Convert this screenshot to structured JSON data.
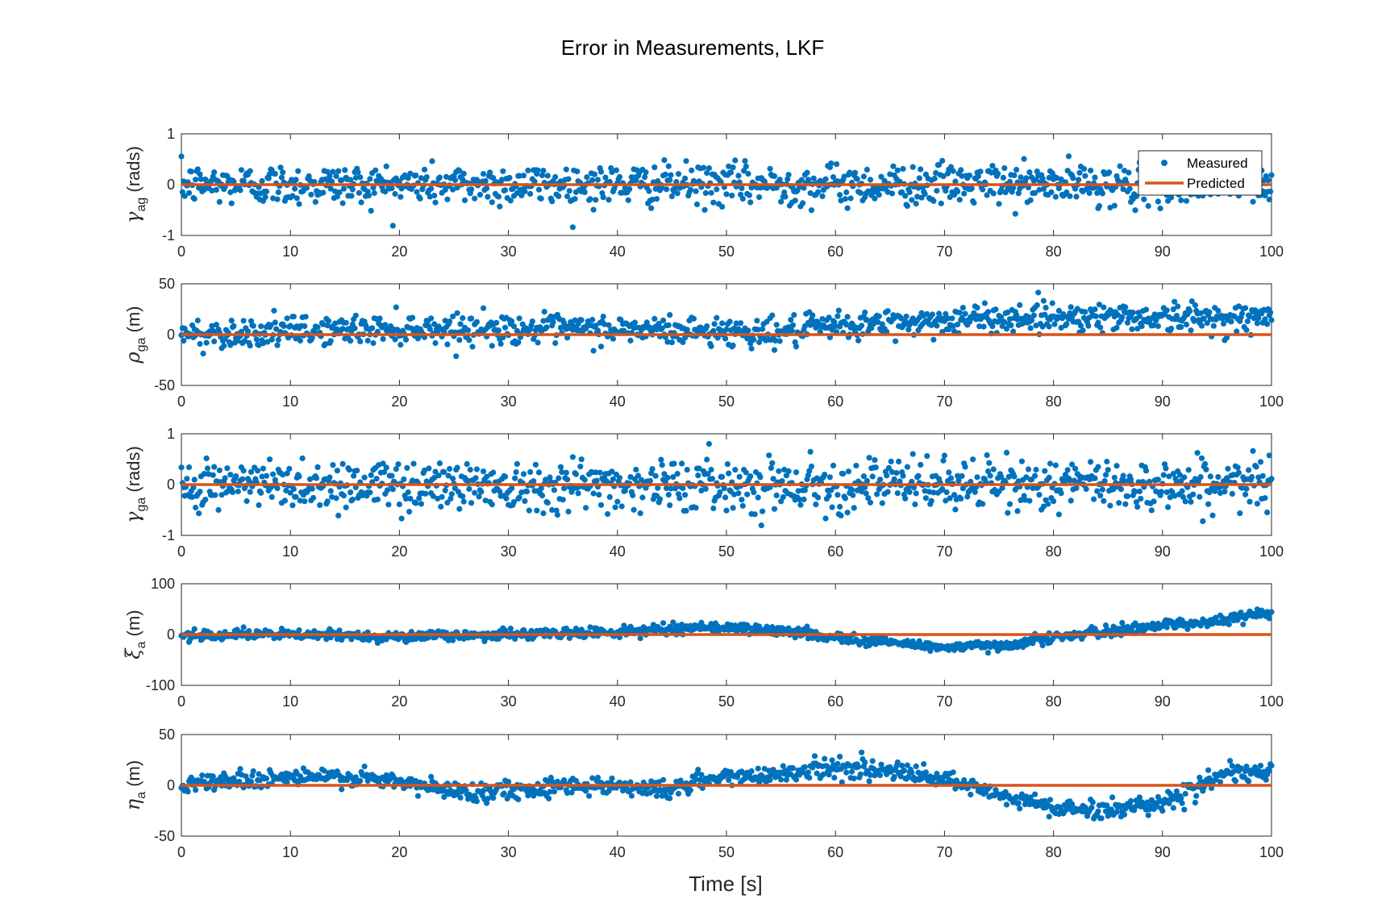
{
  "chart_data": {
    "title": "Error in Measurements, LKF",
    "xlabel": "Time [s]",
    "colors": {
      "measured": "#0072BD",
      "predicted": "#D95319",
      "axis": "#262626"
    },
    "legend": {
      "placement": "top-right",
      "entries": [
        "Measured",
        "Predicted"
      ]
    },
    "grid": false,
    "panels": [
      {
        "type": "scatter",
        "ylabel": {
          "symbol": "γ",
          "sub": "ag",
          "unit": "(rads)"
        },
        "xlim": [
          0,
          100
        ],
        "ylim": [
          -1,
          1
        ],
        "xticks": [
          "0",
          "10",
          "20",
          "30",
          "40",
          "50",
          "60",
          "70",
          "80",
          "90",
          "100"
        ],
        "yticks": [
          "-1",
          "0",
          "1"
        ],
        "x": [
          0,
          100
        ],
        "series": [
          {
            "name": "Measured",
            "noise_sd": 0.2,
            "trend": [
              [
                0,
                0
              ],
              [
                100,
                0
              ]
            ]
          },
          {
            "name": "Predicted",
            "values": [
              0,
              0
            ]
          }
        ]
      },
      {
        "type": "scatter",
        "ylabel": {
          "symbol": "ρ",
          "sub": "ga",
          "unit": "(m)"
        },
        "xlim": [
          0,
          100
        ],
        "ylim": [
          -50,
          50
        ],
        "xticks": [
          "0",
          "10",
          "20",
          "30",
          "40",
          "50",
          "60",
          "70",
          "80",
          "90",
          "100"
        ],
        "yticks": [
          "-50",
          "0",
          "50"
        ],
        "x": [
          0,
          100
        ],
        "series": [
          {
            "name": "Measured",
            "noise_sd": 7,
            "trend": [
              [
                0,
                0
              ],
              [
                20,
                6
              ],
              [
                40,
                5
              ],
              [
                55,
                2
              ],
              [
                60,
                8
              ],
              [
                70,
                14
              ],
              [
                80,
                18
              ],
              [
                90,
                17
              ],
              [
                100,
                16
              ]
            ]
          },
          {
            "name": "Predicted",
            "values": [
              0,
              0
            ]
          }
        ]
      },
      {
        "type": "scatter",
        "ylabel": {
          "symbol": "γ",
          "sub": "ga",
          "unit": "(rads)"
        },
        "xlim": [
          0,
          100
        ],
        "ylim": [
          -1,
          1
        ],
        "xticks": [
          "0",
          "10",
          "20",
          "30",
          "40",
          "50",
          "60",
          "70",
          "80",
          "90",
          "100"
        ],
        "yticks": [
          "-1",
          "0",
          "1"
        ],
        "x": [
          0,
          100
        ],
        "series": [
          {
            "name": "Measured",
            "noise_sd": 0.25,
            "trend": [
              [
                0,
                0
              ],
              [
                100,
                0
              ]
            ]
          },
          {
            "name": "Predicted",
            "values": [
              0,
              0
            ]
          }
        ]
      },
      {
        "type": "scatter",
        "ylabel": {
          "symbol": "ξ",
          "sub": "a",
          "unit": "(m)"
        },
        "xlim": [
          0,
          100
        ],
        "ylim": [
          -100,
          100
        ],
        "xticks": [
          "0",
          "10",
          "20",
          "30",
          "40",
          "50",
          "60",
          "70",
          "80",
          "90",
          "100"
        ],
        "yticks": [
          "-100",
          "0",
          "100"
        ],
        "x": [
          0,
          100
        ],
        "series": [
          {
            "name": "Measured",
            "noise_sd": 5,
            "trend": [
              [
                0,
                0
              ],
              [
                10,
                0
              ],
              [
                20,
                -4
              ],
              [
                30,
                0
              ],
              [
                40,
                5
              ],
              [
                48,
                15
              ],
              [
                50,
                14
              ],
              [
                56,
                5
              ],
              [
                62,
                -10
              ],
              [
                70,
                -25
              ],
              [
                75,
                -22
              ],
              [
                80,
                -5
              ],
              [
                85,
                5
              ],
              [
                90,
                20
              ],
              [
                95,
                25
              ],
              [
                100,
                45
              ]
            ]
          },
          {
            "name": "Predicted",
            "values": [
              0,
              0
            ]
          }
        ]
      },
      {
        "type": "scatter",
        "ylabel": {
          "symbol": "η",
          "sub": "a",
          "unit": "(m)"
        },
        "xlim": [
          0,
          100
        ],
        "ylim": [
          -50,
          50
        ],
        "xticks": [
          "0",
          "10",
          "20",
          "30",
          "40",
          "50",
          "60",
          "70",
          "80",
          "90",
          "100"
        ],
        "yticks": [
          "-50",
          "0",
          "50"
        ],
        "x": [
          0,
          100
        ],
        "series": [
          {
            "name": "Measured",
            "noise_sd": 4.5,
            "trend": [
              [
                0,
                2
              ],
              [
                10,
                8
              ],
              [
                15,
                8
              ],
              [
                20,
                3
              ],
              [
                25,
                -6
              ],
              [
                30,
                -5
              ],
              [
                35,
                0
              ],
              [
                40,
                0
              ],
              [
                45,
                -5
              ],
              [
                47,
                3
              ],
              [
                50,
                8
              ],
              [
                55,
                12
              ],
              [
                60,
                18
              ],
              [
                65,
                14
              ],
              [
                70,
                5
              ],
              [
                75,
                -10
              ],
              [
                80,
                -22
              ],
              [
                84,
                -25
              ],
              [
                88,
                -20
              ],
              [
                92,
                -10
              ],
              [
                95,
                10
              ],
              [
                100,
                12
              ]
            ]
          },
          {
            "name": "Predicted",
            "values": [
              0,
              0
            ]
          }
        ]
      }
    ]
  }
}
